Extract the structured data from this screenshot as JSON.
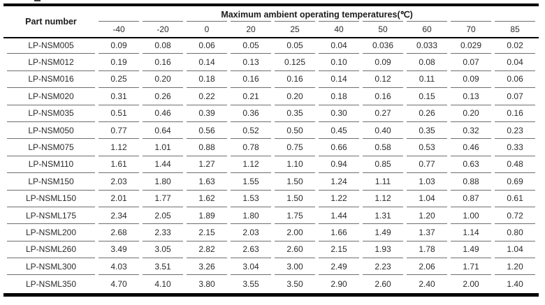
{
  "page": {
    "cropped_fragment": ""
  },
  "table": {
    "part_number_header": "Part number",
    "group_header": "Maximum ambient operating temperatures(℃)",
    "temperature_columns": [
      "-40",
      "-20",
      "0",
      "20",
      "25",
      "40",
      "50",
      "60",
      "70",
      "85"
    ],
    "rows": [
      {
        "part_number": "LP-NSM005",
        "values": [
          "0.09",
          "0.08",
          "0.06",
          "0.05",
          "0.05",
          "0.04",
          "0.036",
          "0.033",
          "0.029",
          "0.02"
        ]
      },
      {
        "part_number": "LP-NSM012",
        "values": [
          "0.19",
          "0.16",
          "0.14",
          "0.13",
          "0.125",
          "0.10",
          "0.09",
          "0.08",
          "0.07",
          "0.04"
        ]
      },
      {
        "part_number": "LP-NSM016",
        "values": [
          "0.25",
          "0.20",
          "0.18",
          "0.16",
          "0.16",
          "0.14",
          "0.12",
          "0.11",
          "0.09",
          "0.06"
        ]
      },
      {
        "part_number": "LP-NSM020",
        "values": [
          "0.31",
          "0.26",
          "0.22",
          "0.21",
          "0.20",
          "0.18",
          "0.16",
          "0.15",
          "0.13",
          "0.07"
        ]
      },
      {
        "part_number": "LP-NSM035",
        "values": [
          "0.51",
          "0.46",
          "0.39",
          "0.36",
          "0.35",
          "0.30",
          "0.27",
          "0.26",
          "0.20",
          "0.16"
        ]
      },
      {
        "part_number": "LP-NSM050",
        "values": [
          "0.77",
          "0.64",
          "0.56",
          "0.52",
          "0.50",
          "0.45",
          "0.40",
          "0.35",
          "0.32",
          "0.23"
        ]
      },
      {
        "part_number": "LP-NSM075",
        "values": [
          "1.12",
          "1.01",
          "0.88",
          "0.78",
          "0.75",
          "0.66",
          "0.58",
          "0.53",
          "0.46",
          "0.33"
        ]
      },
      {
        "part_number": "LP-NSM110",
        "values": [
          "1.61",
          "1.44",
          "1.27",
          "1.12",
          "1.10",
          "0.94",
          "0.85",
          "0.77",
          "0.63",
          "0.48"
        ]
      },
      {
        "part_number": "LP-NSM150",
        "values": [
          "2.03",
          "1.80",
          "1.63",
          "1.55",
          "1.50",
          "1.24",
          "1.11",
          "1.03",
          "0.88",
          "0.69"
        ]
      },
      {
        "part_number": "LP-NSML150",
        "values": [
          "2.01",
          "1.77",
          "1.62",
          "1.53",
          "1.50",
          "1.22",
          "1.12",
          "1.04",
          "0.87",
          "0.61"
        ]
      },
      {
        "part_number": "LP-NSML175",
        "values": [
          "2.34",
          "2.05",
          "1.89",
          "1.80",
          "1.75",
          "1.44",
          "1.31",
          "1.20",
          "1.00",
          "0.72"
        ]
      },
      {
        "part_number": "LP-NSML200",
        "values": [
          "2.68",
          "2.33",
          "2.15",
          "2.03",
          "2.00",
          "1.66",
          "1.49",
          "1.37",
          "1.14",
          "0.80"
        ]
      },
      {
        "part_number": "LP-NSML260",
        "values": [
          "3.49",
          "3.05",
          "2.82",
          "2.63",
          "2.60",
          "2.15",
          "1.93",
          "1.78",
          "1.49",
          "1.04"
        ]
      },
      {
        "part_number": "LP-NSML300",
        "values": [
          "4.03",
          "3.51",
          "3.26",
          "3.04",
          "3.00",
          "2.49",
          "2.23",
          "2.06",
          "1.71",
          "1.20"
        ]
      },
      {
        "part_number": "LP-NSML350",
        "values": [
          "4.70",
          "4.10",
          "3.80",
          "3.55",
          "3.50",
          "2.90",
          "2.60",
          "2.40",
          "2.00",
          "1.40"
        ]
      }
    ]
  },
  "colors": {
    "background": "#ffffff",
    "text": "#2b2b2b",
    "thick_rule": "#000000",
    "thin_rule": "#6e6e6e"
  }
}
